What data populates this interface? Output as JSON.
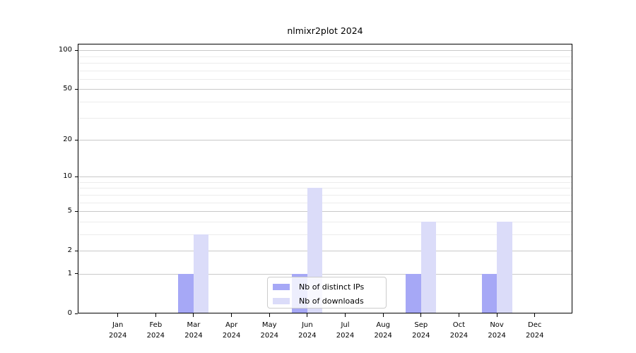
{
  "chart_data": {
    "type": "bar",
    "title": "nlmixr2plot 2024",
    "categories": [
      "Jan",
      "Feb",
      "Mar",
      "Apr",
      "May",
      "Jun",
      "Jul",
      "Aug",
      "Sep",
      "Oct",
      "Nov",
      "Dec"
    ],
    "year_label": "2024",
    "series": [
      {
        "name": "Nb of distinct IPs",
        "color": "#a6a8f6",
        "values": [
          0,
          0,
          1,
          0,
          0,
          1,
          0,
          0,
          1,
          0,
          1,
          0
        ]
      },
      {
        "name": "Nb of downloads",
        "color": "#dbdcf9",
        "values": [
          0,
          0,
          3,
          0,
          0,
          8,
          0,
          0,
          4,
          0,
          4,
          0
        ]
      }
    ],
    "yscale": "log1p",
    "ylim": [
      0,
      113
    ],
    "yticks": [
      0,
      1,
      2,
      5,
      10,
      20,
      50,
      100
    ],
    "minor_gridlines": [
      3,
      4,
      6,
      7,
      8,
      9,
      30,
      40,
      60,
      70,
      80,
      90
    ],
    "grid": true,
    "legend_position": "lower center",
    "axis_color": "#000000",
    "major_grid_color": "#c9c9c9",
    "minor_grid_color": "#ececec"
  }
}
